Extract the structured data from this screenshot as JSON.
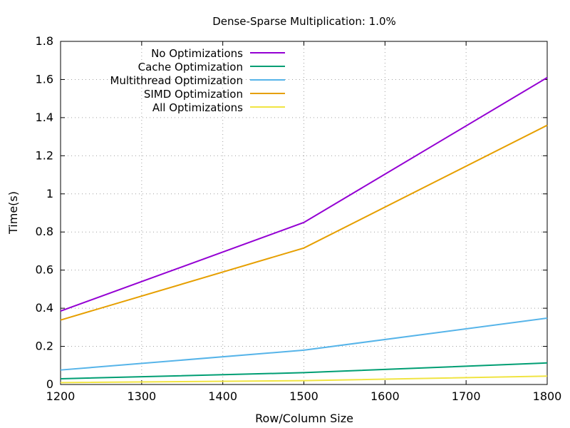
{
  "chart_data": {
    "type": "line",
    "title": "Dense-Sparse Multiplication: 1.0%",
    "xlabel": "Row/Column Size",
    "ylabel": "Time(s)",
    "xlim": [
      1200,
      1800
    ],
    "ylim": [
      0,
      1.8
    ],
    "x_ticks": [
      "1200",
      "1300",
      "1400",
      "1500",
      "1600",
      "1700",
      "1800"
    ],
    "y_ticks": [
      "0",
      "0.2",
      "0.4",
      "0.6",
      "0.8",
      "1",
      "1.2",
      "1.4",
      "1.6",
      "1.8"
    ],
    "grid": true,
    "legend_position": "top-left",
    "x": [
      1200,
      1500,
      1800
    ],
    "series": [
      {
        "name": "No Optimizations",
        "color": "#9400d3",
        "values": [
          0.385,
          0.85,
          1.61
        ]
      },
      {
        "name": "Cache Optimization",
        "color": "#009e73",
        "values": [
          0.03,
          0.062,
          0.113
        ]
      },
      {
        "name": "Multithread Optimization",
        "color": "#56b4e9",
        "values": [
          0.076,
          0.18,
          0.348
        ]
      },
      {
        "name": "SIMD Optimization",
        "color": "#e69f00",
        "values": [
          0.338,
          0.716,
          1.36
        ]
      },
      {
        "name": "All Optimizations",
        "color": "#f0e442",
        "values": [
          0.01,
          0.02,
          0.044
        ]
      }
    ]
  }
}
